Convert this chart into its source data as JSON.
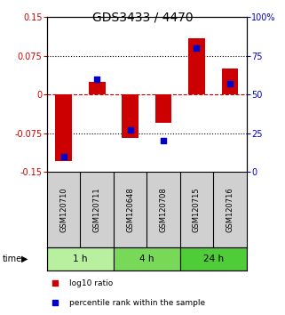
{
  "title": "GDS3433 / 4470",
  "samples": [
    "GSM120710",
    "GSM120711",
    "GSM120648",
    "GSM120708",
    "GSM120715",
    "GSM120716"
  ],
  "log10_ratio": [
    -0.13,
    0.025,
    -0.085,
    -0.055,
    0.11,
    0.05
  ],
  "percentile_rank": [
    10.0,
    60.0,
    27.0,
    20.0,
    80.0,
    57.0
  ],
  "time_groups": [
    {
      "label": "1 h",
      "indices": [
        0,
        1
      ],
      "color": "#b8f0a0"
    },
    {
      "label": "4 h",
      "indices": [
        2,
        3
      ],
      "color": "#78d858"
    },
    {
      "label": "24 h",
      "indices": [
        4,
        5
      ],
      "color": "#50cc38"
    }
  ],
  "ylim_left": [
    -0.15,
    0.15
  ],
  "ylim_right": [
    0,
    100
  ],
  "yticks_left": [
    -0.15,
    -0.075,
    0,
    0.075,
    0.15
  ],
  "ytick_labels_left": [
    "-0.15",
    "-0.075",
    "0",
    "0.075",
    "0.15"
  ],
  "yticks_right": [
    0,
    25,
    50,
    75,
    100
  ],
  "ytick_labels_right": [
    "0",
    "25",
    "50",
    "75",
    "100%"
  ],
  "bar_color": "#cc0000",
  "dot_color": "#0000cc",
  "hline_color": "#cc0000",
  "dotted_line_color": "#000000",
  "bg_color_plot": "#ffffff",
  "bg_color_labels": "#d0d0d0",
  "title_fontsize": 10,
  "tick_fontsize": 7,
  "label_fontsize": 6,
  "bar_width": 0.5,
  "dot_size": 20
}
